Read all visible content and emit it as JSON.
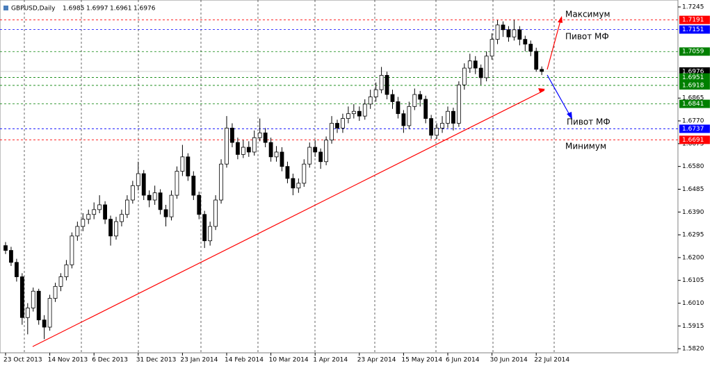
{
  "chart_data": {
    "type": "candlestick",
    "title": "GBPUSD,Daily",
    "header_values": [
      1.6985,
      1.6997,
      1.6961,
      1.6976
    ],
    "categories": [
      "23 Oct 2013",
      null,
      null,
      null,
      null,
      null,
      null,
      null,
      "14 Nov 2013",
      null,
      null,
      null,
      null,
      null,
      null,
      null,
      "6 Dec 2013",
      null,
      null,
      null,
      null,
      null,
      null,
      null,
      "31 Dec 2013",
      null,
      null,
      null,
      null,
      null,
      null,
      null,
      "23 Jan 2014",
      null,
      null,
      null,
      null,
      null,
      null,
      null,
      "14 Feb 2014",
      null,
      null,
      null,
      null,
      null,
      null,
      null,
      "10 Mar 2014",
      null,
      null,
      null,
      null,
      null,
      null,
      null,
      "1 Apr 2014",
      null,
      null,
      null,
      null,
      null,
      null,
      null,
      "23 Apr 2014",
      null,
      null,
      null,
      null,
      null,
      null,
      null,
      "15 May 2014",
      null,
      null,
      null,
      null,
      null,
      null,
      null,
      "6 Jun 2014",
      null,
      null,
      null,
      null,
      null,
      null,
      null,
      "30 Jun 2014",
      null,
      null,
      null,
      null,
      null,
      null,
      null,
      "22 Jul 2014",
      null
    ],
    "open": [
      1.625,
      1.623,
      1.618,
      1.612,
      1.595,
      1.599,
      1.606,
      1.594,
      1.591,
      1.603,
      1.608,
      1.612,
      1.617,
      1.629,
      1.633,
      1.636,
      1.638,
      1.64,
      1.642,
      1.636,
      1.629,
      1.635,
      1.638,
      1.644,
      1.65,
      1.655,
      1.646,
      1.644,
      1.647,
      1.64,
      1.637,
      1.646,
      1.656,
      1.662,
      1.654,
      1.646,
      1.638,
      1.627,
      1.633,
      1.644,
      1.659,
      1.674,
      1.668,
      1.663,
      1.666,
      1.664,
      1.67,
      1.672,
      1.668,
      1.662,
      1.664,
      1.658,
      1.653,
      1.649,
      1.651,
      1.659,
      1.666,
      1.664,
      1.66,
      1.669,
      1.676,
      1.674,
      1.678,
      1.68,
      1.681,
      1.679,
      1.684,
      1.687,
      1.69,
      1.696,
      1.688,
      1.685,
      1.68,
      1.675,
      1.683,
      1.688,
      1.686,
      1.678,
      1.671,
      1.674,
      1.676,
      1.681,
      1.676,
      1.692,
      1.699,
      1.702,
      1.699,
      1.695,
      1.704,
      1.711,
      1.717,
      1.715,
      1.712,
      1.715,
      1.711,
      1.709,
      1.706,
      1.6985
    ],
    "high": [
      1.6265,
      1.6245,
      1.6195,
      1.6135,
      1.601,
      1.6075,
      1.607,
      1.596,
      1.6045,
      1.6095,
      1.6135,
      1.619,
      1.6305,
      1.635,
      1.6385,
      1.64,
      1.643,
      1.646,
      1.6435,
      1.6375,
      1.637,
      1.64,
      1.646,
      1.652,
      1.66,
      1.6565,
      1.648,
      1.65,
      1.6485,
      1.642,
      1.648,
      1.658,
      1.667,
      1.6635,
      1.656,
      1.6475,
      1.6395,
      1.635,
      1.646,
      1.661,
      1.679,
      1.676,
      1.67,
      1.669,
      1.6685,
      1.673,
      1.678,
      1.674,
      1.67,
      1.6665,
      1.666,
      1.66,
      1.655,
      1.653,
      1.661,
      1.668,
      1.669,
      1.6655,
      1.6705,
      1.679,
      1.6775,
      1.68,
      1.683,
      1.684,
      1.683,
      1.686,
      1.69,
      1.693,
      1.6995,
      1.6975,
      1.69,
      1.687,
      1.6815,
      1.685,
      1.6905,
      1.6895,
      1.6875,
      1.6795,
      1.676,
      1.679,
      1.683,
      1.6825,
      1.6935,
      1.701,
      1.705,
      1.704,
      1.7005,
      1.706,
      1.7135,
      1.719,
      1.7185,
      1.7165,
      1.7191,
      1.7165,
      1.7125,
      1.7105,
      1.7075,
      1.6997
    ],
    "low": [
      1.6215,
      1.6165,
      1.61,
      1.592,
      1.588,
      1.5975,
      1.592,
      1.586,
      1.5895,
      1.6015,
      1.606,
      1.6105,
      1.6155,
      1.627,
      1.631,
      1.634,
      1.636,
      1.6385,
      1.634,
      1.625,
      1.6275,
      1.633,
      1.6365,
      1.6425,
      1.648,
      1.644,
      1.641,
      1.642,
      1.638,
      1.633,
      1.6355,
      1.6445,
      1.654,
      1.652,
      1.644,
      1.636,
      1.624,
      1.625,
      1.6315,
      1.6425,
      1.6575,
      1.666,
      1.661,
      1.6615,
      1.662,
      1.6625,
      1.6685,
      1.666,
      1.66,
      1.66,
      1.656,
      1.651,
      1.646,
      1.647,
      1.6495,
      1.6575,
      1.662,
      1.657,
      1.6585,
      1.6675,
      1.672,
      1.672,
      1.676,
      1.678,
      1.677,
      1.6775,
      1.682,
      1.685,
      1.6885,
      1.686,
      1.682,
      1.678,
      1.672,
      1.6735,
      1.6815,
      1.683,
      1.676,
      1.6695,
      1.6695,
      1.672,
      1.674,
      1.673,
      1.6745,
      1.69,
      1.697,
      1.6965,
      1.692,
      1.6935,
      1.7025,
      1.709,
      1.712,
      1.71,
      1.7105,
      1.7085,
      1.706,
      1.704,
      1.6975,
      1.6961
    ],
    "close": [
      1.623,
      1.618,
      1.612,
      1.595,
      1.599,
      1.606,
      1.594,
      1.591,
      1.603,
      1.608,
      1.612,
      1.617,
      1.629,
      1.633,
      1.636,
      1.638,
      1.64,
      1.642,
      1.636,
      1.629,
      1.635,
      1.638,
      1.644,
      1.65,
      1.655,
      1.646,
      1.644,
      1.647,
      1.64,
      1.637,
      1.646,
      1.656,
      1.662,
      1.654,
      1.646,
      1.638,
      1.627,
      1.633,
      1.644,
      1.659,
      1.674,
      1.668,
      1.663,
      1.666,
      1.664,
      1.67,
      1.672,
      1.668,
      1.662,
      1.664,
      1.658,
      1.653,
      1.649,
      1.651,
      1.659,
      1.666,
      1.664,
      1.66,
      1.669,
      1.676,
      1.674,
      1.678,
      1.68,
      1.681,
      1.679,
      1.684,
      1.687,
      1.69,
      1.696,
      1.688,
      1.685,
      1.68,
      1.675,
      1.683,
      1.688,
      1.686,
      1.678,
      1.671,
      1.674,
      1.676,
      1.681,
      1.676,
      1.692,
      1.699,
      1.702,
      1.699,
      1.695,
      1.704,
      1.711,
      1.717,
      1.715,
      1.712,
      1.715,
      1.711,
      1.709,
      1.706,
      1.6985,
      1.6976
    ],
    "ylim": [
      1.5803,
      1.7274
    ],
    "yticks": [
      1.7245,
      1.6865,
      {
        "value": 1.677,
        "label": "1.6770"
      },
      1.6675,
      {
        "value": 1.658,
        "label": "1.6580"
      },
      1.6485,
      {
        "value": 1.639,
        "label": "1.6390"
      },
      1.6295,
      {
        "value": 1.62,
        "label": "1.6200"
      },
      1.6105,
      {
        "value": 1.601,
        "label": "1.6010"
      },
      1.5915,
      {
        "value": 1.582,
        "label": "1.5820"
      }
    ],
    "levels": [
      {
        "value": 1.7191,
        "color": "#ff0000"
      },
      {
        "value": 1.7151,
        "color": "#0000ff"
      },
      {
        "value": 1.7059,
        "color": "#008000"
      },
      {
        "value": 1.6976,
        "color": "#000000"
      },
      {
        "value": 1.6951,
        "color": "#008000"
      },
      {
        "value": 1.6918,
        "color": "#008000"
      },
      {
        "value": 1.6841,
        "color": "#008000"
      },
      {
        "value": 1.6737,
        "color": "#0000ff"
      },
      {
        "value": 1.6691,
        "color": "#ff0000"
      }
    ],
    "annotations": [
      "Максимум",
      "Пивот МФ",
      "Пивот МФ",
      "Минимум"
    ]
  }
}
